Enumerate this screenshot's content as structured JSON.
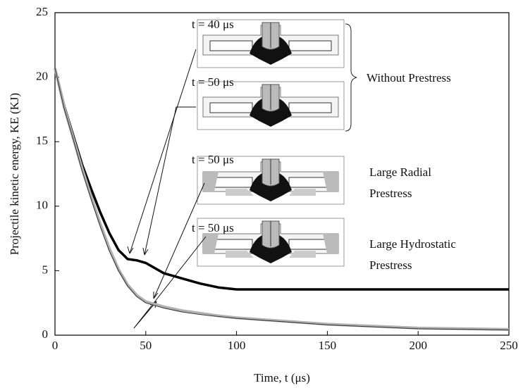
{
  "chart_data": {
    "type": "line",
    "x_label": "Time, t (μs)",
    "y_label": "Projectile kinetic energy, KE (KJ)",
    "xlim": [
      0,
      250
    ],
    "xticks": [
      0,
      50,
      100,
      150,
      200,
      250
    ],
    "ylim": [
      0,
      25
    ],
    "yticks": [
      0,
      5,
      10,
      15,
      20,
      25
    ],
    "x": [
      0,
      5,
      10,
      15,
      20,
      25,
      30,
      35,
      40,
      45,
      50,
      60,
      70,
      80,
      90,
      100,
      150,
      200,
      250
    ],
    "series": [
      {
        "color": "#000000",
        "values": [
          20.7,
          17.8,
          15.5,
          13.2,
          11.3,
          9.5,
          7.9,
          6.6,
          5.9,
          5.8,
          5.6,
          4.8,
          4.4,
          4.0,
          3.7,
          3.55,
          3.55,
          3.55,
          3.55
        ]
      },
      {
        "color": "#b0b0b0",
        "values": [
          20.7,
          17.7,
          15.3,
          12.9,
          10.7,
          8.6,
          6.7,
          5.1,
          3.9,
          3.1,
          2.6,
          2.2,
          1.9,
          1.7,
          1.5,
          1.35,
          0.85,
          0.55,
          0.45
        ]
      },
      {
        "color": "#333333",
        "values": [
          20.7,
          17.6,
          15.2,
          12.7,
          10.5,
          8.4,
          6.5,
          5.0,
          3.8,
          3.0,
          2.5,
          2.1,
          1.8,
          1.6,
          1.45,
          1.3,
          0.8,
          0.5,
          0.4
        ]
      }
    ],
    "annotations": [
      {
        "lines": [
          "t = 40 μs"
        ]
      },
      {
        "lines": [
          "t = 50 μs"
        ]
      },
      {
        "lines": [
          "t = 50 μs"
        ]
      },
      {
        "lines": [
          "t = 50 μs"
        ]
      },
      {
        "lines": [
          "Without Prestress"
        ]
      },
      {
        "lines": [
          "Large Radial",
          "Prestress"
        ]
      },
      {
        "lines": [
          "Large Hydrostatic",
          "Prestress"
        ]
      }
    ]
  }
}
